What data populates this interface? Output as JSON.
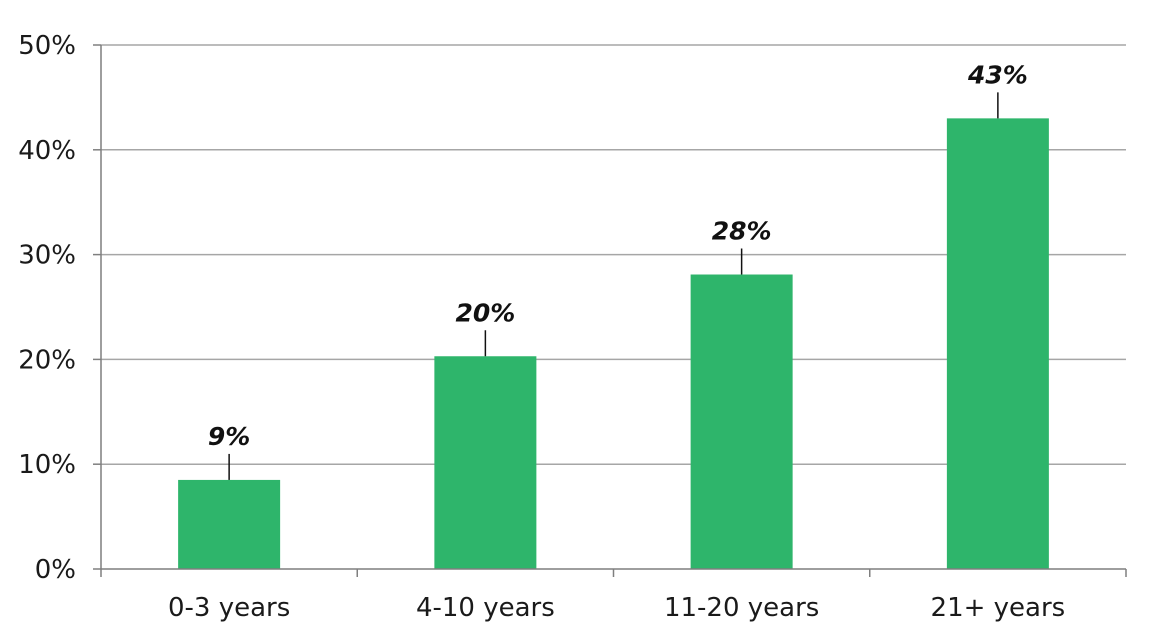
{
  "chart_data": {
    "type": "bar",
    "categories": [
      "0-3 years",
      "4-10 years",
      "11-20 years",
      "21+ years"
    ],
    "values": [
      8.5,
      20.3,
      28.1,
      43.0
    ],
    "data_labels": [
      "9%",
      "20%",
      "28%",
      "43%"
    ],
    "title": "",
    "xlabel": "",
    "ylabel": "",
    "ylim": [
      0,
      50
    ],
    "yticks": [
      0,
      10,
      20,
      30,
      40,
      50
    ],
    "ytick_labels": [
      "0%",
      "10%",
      "20%",
      "30%",
      "40%",
      "50%"
    ],
    "grid": true,
    "legend": "none",
    "bar_color": "#2eb56b",
    "grid_color": "#a6a6a6",
    "axis_color": "#7f7f7f"
  }
}
